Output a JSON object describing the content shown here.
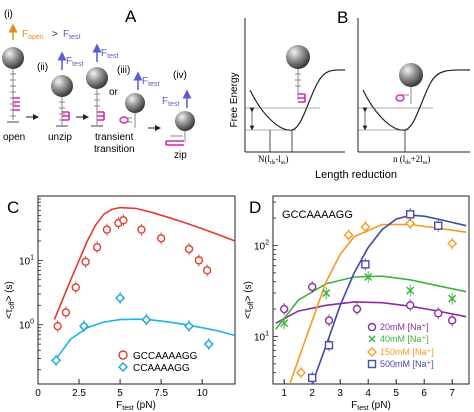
{
  "panelA": {
    "letter": "A",
    "step_labels": [
      "(i)",
      "(ii)",
      "(iii)",
      "or",
      "(iv)"
    ],
    "force_open": "F",
    "force_open_sub": "open",
    "gt": " > ",
    "force_test": "F",
    "force_test_sub": "test",
    "states": [
      "open",
      "unzip",
      "transient",
      "transition",
      "zip"
    ],
    "colors": {
      "open_force": "#e58a1f",
      "test_force": "#5a5cc8",
      "hairpin": "#d62aa6"
    }
  },
  "panelB": {
    "letter": "B",
    "ylabel": "Free Energy",
    "xlabel": "Length reduction",
    "tick_left": "N(l",
    "tick_left_sub1": "ds",
    "tick_left_mid": "-l",
    "tick_left_sub2": "ss",
    "tick_left_end": ")",
    "tick_right": "n (l",
    "tick_right_sub1": "ds",
    "tick_right_mid": "+2l",
    "tick_right_sub2": "ss",
    "tick_right_end": ")"
  },
  "panelC": {
    "letter": "C",
    "ylabel_main": "<τ",
    "ylabel_sub": "off",
    "ylabel_end": "> (s)",
    "xlabel_main": "F",
    "xlabel_sub": "test",
    "xlabel_end": " (pN)",
    "xticks": [
      "0",
      "2.5",
      "5",
      "7.5",
      "10"
    ],
    "yticks": [
      {
        "base": "10",
        "exp": "0"
      },
      {
        "base": "10",
        "exp": "1"
      }
    ],
    "legend": [
      "GCCAAAAGG",
      "CCAAAAGG"
    ]
  },
  "panelD": {
    "letter": "D",
    "sequence_label": "GCCAAAAGG",
    "ylabel_main": "<τ",
    "ylabel_sub": "off",
    "ylabel_end": "> (s)",
    "xlabel_main": "F",
    "xlabel_sub": "test",
    "xlabel_end": " (pN)",
    "xticks": [
      "1",
      "2",
      "3",
      "4",
      "5",
      "6",
      "7"
    ],
    "yticks": [
      {
        "base": "10",
        "exp": "1"
      },
      {
        "base": "10",
        "exp": "2"
      }
    ],
    "legend": [
      "20mM [Na⁺]",
      "40mM [Na⁺]",
      "150mM [Na⁺]",
      "500mM [Na⁺]"
    ]
  },
  "chart_data": [
    {
      "type": "scatter",
      "panel": "C",
      "xlabel": "Ftest (pN)",
      "ylabel": "<τoff> (s)",
      "xlim": [
        0,
        12
      ],
      "ylim": [
        0.12,
        100
      ],
      "yscale": "log",
      "series": [
        {
          "name": "GCCAAAAGG",
          "color": "#e23b2e",
          "marker": "circle",
          "x": [
            1.2,
            1.7,
            2.3,
            2.9,
            3.6,
            4.2,
            4.9,
            5.2,
            6.3,
            7.5,
            9.2,
            9.8,
            10.3
          ],
          "y": [
            0.95,
            1.55,
            3.8,
            9.5,
            16,
            30,
            38,
            42,
            30,
            22,
            15,
            10,
            7
          ]
        },
        {
          "name": "CCAAAAGG",
          "color": "#1aa5d6",
          "marker": "diamond",
          "x": [
            1.1,
            2.8,
            5.0,
            6.6,
            9.2,
            10.4
          ],
          "y": [
            0.28,
            0.95,
            2.6,
            1.2,
            0.95,
            0.5
          ]
        },
        {
          "name": "GCCAAAAGG model",
          "color": "#e23b2e",
          "style": "line",
          "x": [
            1,
            2,
            2.5,
            3,
            3.5,
            4,
            4.5,
            5,
            6,
            7,
            8,
            9,
            10,
            11,
            12
          ],
          "y": [
            1.2,
            5,
            10,
            20,
            35,
            52,
            62,
            66,
            64,
            55,
            46,
            38,
            31,
            25,
            20
          ]
        },
        {
          "name": "CCAAAAGG model",
          "color": "#1ab4e6",
          "style": "line",
          "x": [
            1,
            2,
            3,
            4,
            5,
            6,
            7,
            8,
            9,
            10,
            11,
            12
          ],
          "y": [
            0.27,
            0.6,
            0.9,
            1.1,
            1.2,
            1.22,
            1.18,
            1.1,
            1.0,
            0.9,
            0.8,
            0.68
          ]
        }
      ]
    },
    {
      "type": "scatter",
      "panel": "D",
      "xlabel": "Ftest (pN)",
      "ylabel": "<τoff> (s)",
      "xlim": [
        0.6,
        7.6
      ],
      "ylim": [
        3,
        350
      ],
      "yscale": "log",
      "series": [
        {
          "name": "20mM [Na+]",
          "color": "#8a2da0",
          "marker": "circle",
          "x": [
            1,
            2,
            2.6,
            3.6,
            5.5,
            6.5,
            7
          ],
          "y": [
            20,
            35,
            15,
            20,
            22,
            18,
            15
          ]
        },
        {
          "name": "40mM [Na+]",
          "color": "#3cb43c",
          "marker": "x",
          "x": [
            1,
            2.5,
            4,
            5.5,
            7
          ],
          "y": [
            14,
            30,
            45,
            32,
            26
          ]
        },
        {
          "name": "150mM [Na+]",
          "color": "#f39c1f",
          "marker": "diamond",
          "x": [
            1.6,
            3.3,
            3.9,
            5.5,
            7
          ],
          "y": [
            4,
            130,
            160,
            175,
            105
          ]
        },
        {
          "name": "500mM [Na+]",
          "color": "#4a4ab0",
          "marker": "square",
          "x": [
            2.0,
            2.6,
            3.9,
            5.5,
            6.5
          ],
          "y": [
            3.5,
            8,
            62,
            220,
            165
          ]
        },
        {
          "name": "20mM model",
          "color": "#8a2da0",
          "style": "line",
          "x": [
            0.7,
            1.5,
            2.5,
            3.5,
            4.5,
            5.5,
            6.5,
            7.5
          ],
          "y": [
            14,
            19,
            22,
            24,
            23.5,
            21.5,
            19,
            16.5
          ]
        },
        {
          "name": "40mM model",
          "color": "#3cb43c",
          "style": "line",
          "x": [
            0.7,
            1.5,
            2.5,
            3.5,
            4.5,
            5.5,
            6.5,
            7.5
          ],
          "y": [
            12,
            25,
            38,
            45,
            46,
            42,
            36,
            31
          ]
        },
        {
          "name": "150mM model",
          "color": "#f39c1f",
          "style": "line",
          "x": [
            1.2,
            1.8,
            2.5,
            3.0,
            3.5,
            4.5,
            5.5,
            6.5,
            7.5
          ],
          "y": [
            3,
            10,
            40,
            80,
            125,
            170,
            170,
            155,
            140
          ]
        },
        {
          "name": "500mM model",
          "color": "#3e4aa8",
          "style": "line",
          "x": [
            2.0,
            2.5,
            3.0,
            3.5,
            4.0,
            4.5,
            5.0,
            5.5,
            6.0,
            6.5,
            7.5
          ],
          "y": [
            3,
            8,
            22,
            50,
            95,
            150,
            195,
            215,
            210,
            195,
            165
          ]
        }
      ]
    }
  ]
}
